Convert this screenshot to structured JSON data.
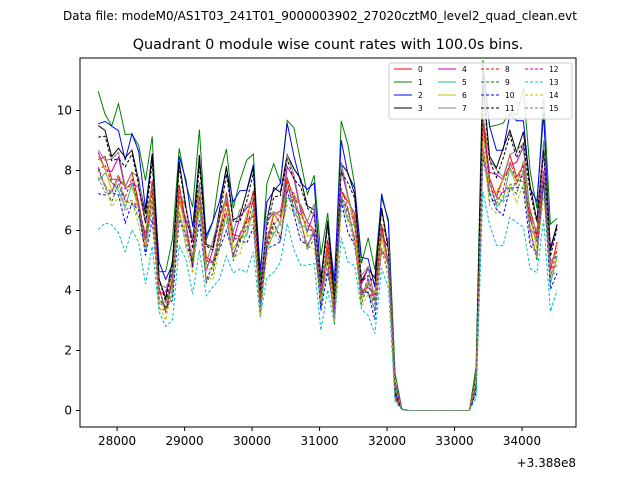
{
  "suptitle": "Data file: modeM0/AS1T03_241T01_9000003902_27020cztM0_level2_quad_clean.evt",
  "chart_data": {
    "type": "line",
    "title": "Quadrant 0 module wise count rates with 100.0s bins.",
    "xlabel": "",
    "ylabel": "",
    "x_offset_label": "+3.388e8",
    "xlim": [
      27450,
      34800
    ],
    "ylim": [
      -0.55,
      11.75
    ],
    "xticks": [
      28000,
      29000,
      30000,
      31000,
      32000,
      33000,
      34000
    ],
    "xtick_labels": [
      "28000",
      "29000",
      "30000",
      "31000",
      "32000",
      "33000",
      "34000"
    ],
    "yticks": [
      0,
      2,
      4,
      6,
      8,
      10
    ],
    "ytick_labels": [
      "0",
      "2",
      "4",
      "6",
      "8",
      "10"
    ],
    "legend_position": "top-right",
    "x": [
      27720,
      27820,
      27920,
      28020,
      28120,
      28220,
      28320,
      28420,
      28520,
      28620,
      28720,
      28820,
      28920,
      29020,
      29120,
      29220,
      29320,
      29420,
      29520,
      29620,
      29720,
      29820,
      29920,
      30020,
      30120,
      30220,
      30320,
      30420,
      30520,
      30620,
      30720,
      30820,
      30920,
      31020,
      31120,
      31220,
      31320,
      31420,
      31520,
      31620,
      31720,
      31820,
      31920,
      32020,
      32120,
      32220,
      32320,
      33220,
      33320,
      33420,
      33520,
      33620,
      33720,
      33820,
      33920,
      34020,
      34120,
      34220,
      34320,
      34420,
      34520
    ],
    "base_profile": [
      8.8,
      8.6,
      8.2,
      8.4,
      7.7,
      8.1,
      7.5,
      6.2,
      7.8,
      4.2,
      3.8,
      4.6,
      7.6,
      6.6,
      5.5,
      7.8,
      5.1,
      5.4,
      6.4,
      7.4,
      6.0,
      6.4,
      6.8,
      7.4,
      3.9,
      6.2,
      6.8,
      6.7,
      8.3,
      7.7,
      7.0,
      6.4,
      6.6,
      4.1,
      5.7,
      3.6,
      8.0,
      7.3,
      6.6,
      4.3,
      4.6,
      3.9,
      6.3,
      5.4,
      0.75,
      0.04,
      0.0,
      0.0,
      1.0,
      10.1,
      8.2,
      7.8,
      8.0,
      8.7,
      8.4,
      8.8,
      6.8,
      6.0,
      8.7,
      5.0,
      5.6
    ],
    "series": [
      {
        "name": "0",
        "color": "#ff0000",
        "dash": false,
        "scale": 0.95,
        "jitter": 0.3
      },
      {
        "name": "1",
        "color": "#008000",
        "dash": false,
        "scale": 1.18,
        "jitter": 0.35
      },
      {
        "name": "2",
        "color": "#0000ff",
        "dash": false,
        "scale": 1.12,
        "jitter": 0.3
      },
      {
        "name": "3",
        "color": "#000000",
        "dash": false,
        "scale": 1.06,
        "jitter": 0.3
      },
      {
        "name": "4",
        "color": "#bf00bf",
        "dash": false,
        "scale": 0.97,
        "jitter": 0.3
      },
      {
        "name": "5",
        "color": "#1abc9c",
        "dash": false,
        "scale": 0.9,
        "jitter": 0.3
      },
      {
        "name": "6",
        "color": "#bfbf00",
        "dash": false,
        "scale": 0.93,
        "jitter": 0.3
      },
      {
        "name": "7",
        "color": "#808080",
        "dash": false,
        "scale": 1.0,
        "jitter": 0.3
      },
      {
        "name": "8",
        "color": "#ff0000",
        "dash": true,
        "scale": 0.92,
        "jitter": 0.3
      },
      {
        "name": "9",
        "color": "#008000",
        "dash": true,
        "scale": 0.88,
        "jitter": 0.3
      },
      {
        "name": "10",
        "color": "#0000ff",
        "dash": true,
        "scale": 0.85,
        "jitter": 0.3
      },
      {
        "name": "11",
        "color": "#000000",
        "dash": true,
        "scale": 1.03,
        "jitter": 0.3
      },
      {
        "name": "12",
        "color": "#bf00bf",
        "dash": true,
        "scale": 0.9,
        "jitter": 0.3
      },
      {
        "name": "13",
        "color": "#00bfbf",
        "dash": true,
        "scale": 0.72,
        "jitter": 0.3
      },
      {
        "name": "14",
        "color": "#bfbf00",
        "dash": true,
        "scale": 0.86,
        "jitter": 0.3
      },
      {
        "name": "15",
        "color": "#808080",
        "dash": true,
        "scale": 0.88,
        "jitter": 0.3
      }
    ]
  }
}
